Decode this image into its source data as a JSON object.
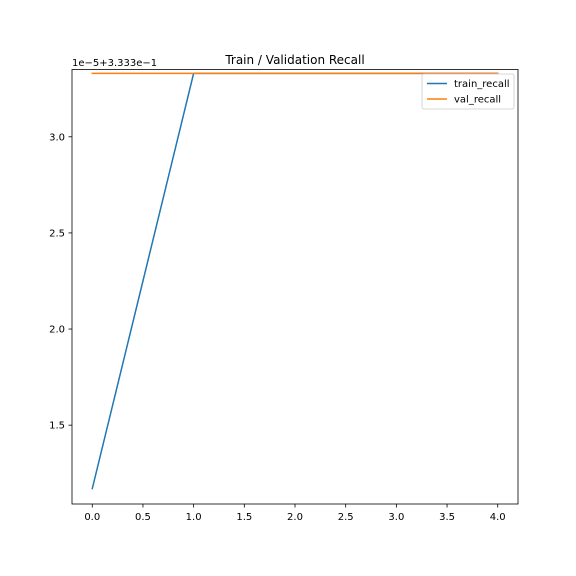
{
  "chart_data": {
    "type": "line",
    "title": "Train / Validation Recall",
    "xlabel": "",
    "ylabel": "",
    "offset_label": "1e−5+3.333e−1",
    "x": [
      0,
      1,
      2,
      3,
      4
    ],
    "xlim": [
      -0.2,
      4.2
    ],
    "ylim": [
      1.09,
      3.35
    ],
    "xticks": [
      0.0,
      0.5,
      1.0,
      1.5,
      2.0,
      2.5,
      3.0,
      3.5,
      4.0
    ],
    "xtick_labels": [
      "0.0",
      "0.5",
      "1.0",
      "1.5",
      "2.0",
      "2.5",
      "3.0",
      "3.5",
      "4.0"
    ],
    "yticks": [
      1.5,
      2.0,
      2.5,
      3.0
    ],
    "ytick_labels": [
      "1.5",
      "2.0",
      "2.5",
      "3.0"
    ],
    "grid": false,
    "legend_position": "top-right",
    "series": [
      {
        "name": "train_recall",
        "color": "#1f77b4",
        "values": [
          1.17,
          3.33,
          3.33,
          3.33,
          3.33
        ]
      },
      {
        "name": "val_recall",
        "color": "#ff7f0e",
        "values": [
          3.33,
          3.33,
          3.33,
          3.33,
          3.33
        ]
      }
    ]
  }
}
